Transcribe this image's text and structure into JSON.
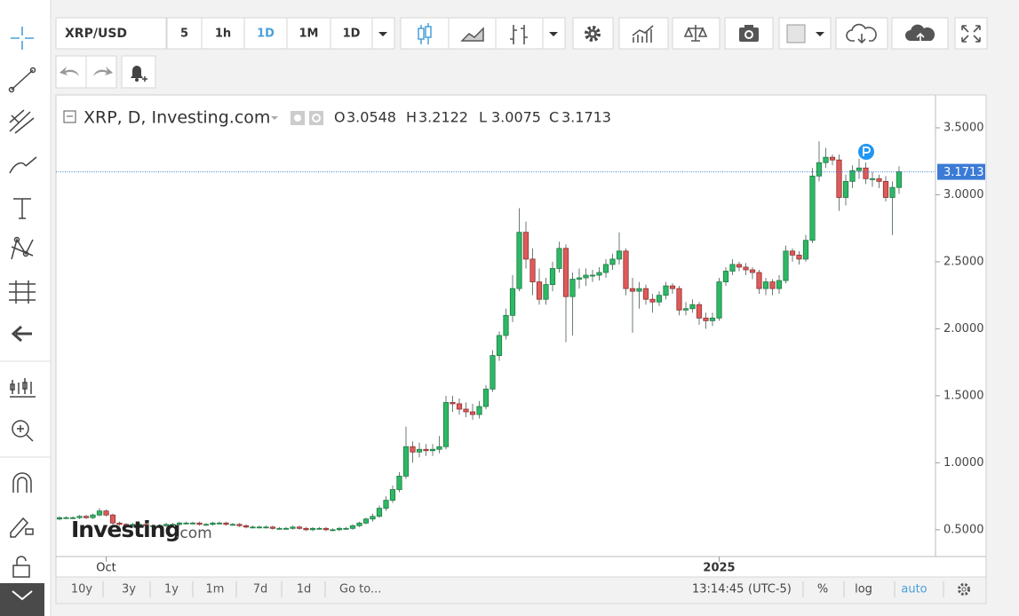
{
  "toolbar": {
    "symbol": "XRP/USD",
    "intervals": [
      "5",
      "1h",
      "1D",
      "1M",
      "1D"
    ]
  },
  "chart_data": {
    "type": "candlestick",
    "title": "XRP, D, Investing.com",
    "ohlc_labels": [
      "O",
      "H",
      "L",
      "C"
    ],
    "categories": [
      null,
      null,
      null,
      null,
      null,
      null,
      null,
      "Oct",
      null,
      null,
      null,
      null,
      null,
      null,
      null,
      null,
      null,
      null,
      null,
      null,
      null,
      null,
      null,
      null,
      null,
      null,
      null,
      null,
      null,
      null,
      null,
      null,
      null,
      null,
      null,
      null,
      null,
      null,
      null,
      null,
      null,
      null,
      null,
      null,
      null,
      null,
      null,
      null,
      null,
      null,
      null,
      null,
      null,
      null,
      null,
      null,
      null,
      null,
      null,
      null,
      null,
      null,
      null,
      null,
      null,
      null,
      null,
      null,
      null,
      null,
      null,
      null,
      null,
      null,
      null,
      null,
      null,
      null,
      null,
      null,
      null,
      null,
      null,
      null,
      null,
      null,
      null,
      null,
      null,
      null,
      null,
      null,
      null,
      null,
      null,
      null,
      null,
      null,
      null,
      "2025",
      null,
      null,
      null,
      null,
      null,
      null,
      null,
      null,
      null,
      null,
      null,
      null,
      null,
      null,
      null,
      null,
      null,
      null,
      null,
      null,
      null,
      null,
      null,
      null,
      null,
      null,
      null
    ],
    "open": [
      0.58,
      0.59,
      0.59,
      0.59,
      0.6,
      0.59,
      0.61,
      0.64,
      0.61,
      0.55,
      0.54,
      0.53,
      0.54,
      0.54,
      0.53,
      0.53,
      0.53,
      0.54,
      0.54,
      0.55,
      0.55,
      0.55,
      0.54,
      0.54,
      0.55,
      0.55,
      0.54,
      0.54,
      0.53,
      0.52,
      0.52,
      0.52,
      0.52,
      0.51,
      0.51,
      0.51,
      0.52,
      0.51,
      0.5,
      0.51,
      0.51,
      0.5,
      0.5,
      0.51,
      0.51,
      0.53,
      0.55,
      0.58,
      0.6,
      0.66,
      0.72,
      0.8,
      0.9,
      1.12,
      1.08,
      1.1,
      1.09,
      1.1,
      1.12,
      1.45,
      1.44,
      1.4,
      1.38,
      1.36,
      1.42,
      1.55,
      1.8,
      1.95,
      2.1,
      2.3,
      2.72,
      2.52,
      2.35,
      2.22,
      2.33,
      2.45,
      2.6,
      2.24,
      2.37,
      2.38,
      2.4,
      2.4,
      2.42,
      2.48,
      2.52,
      2.58,
      2.3,
      2.28,
      2.3,
      2.22,
      2.2,
      2.25,
      2.32,
      2.3,
      2.14,
      2.15,
      2.18,
      2.08,
      2.06,
      2.08,
      2.35,
      2.43,
      2.48,
      2.46,
      2.44,
      2.42,
      2.3,
      2.35,
      2.3,
      2.36,
      2.58,
      2.55,
      2.52,
      2.66,
      3.14,
      3.24,
      3.28,
      3.26,
      2.98,
      3.1,
      3.18,
      3.2,
      3.12,
      3.12,
      3.1,
      2.98,
      3.0548
    ],
    "high": [
      0.6,
      0.6,
      0.6,
      0.61,
      0.61,
      0.62,
      0.66,
      0.65,
      0.62,
      0.56,
      0.55,
      0.55,
      0.55,
      0.55,
      0.54,
      0.54,
      0.55,
      0.55,
      0.56,
      0.56,
      0.56,
      0.56,
      0.55,
      0.56,
      0.56,
      0.56,
      0.55,
      0.55,
      0.54,
      0.53,
      0.53,
      0.53,
      0.53,
      0.52,
      0.52,
      0.53,
      0.53,
      0.52,
      0.52,
      0.52,
      0.52,
      0.51,
      0.52,
      0.52,
      0.54,
      0.56,
      0.59,
      0.62,
      0.68,
      0.75,
      0.83,
      0.93,
      1.27,
      1.16,
      1.15,
      1.14,
      1.14,
      1.2,
      1.5,
      1.5,
      1.48,
      1.45,
      1.44,
      1.46,
      1.58,
      1.84,
      1.98,
      2.15,
      2.4,
      2.9,
      2.8,
      2.6,
      2.45,
      2.38,
      2.5,
      2.65,
      2.63,
      2.42,
      2.45,
      2.45,
      2.44,
      2.46,
      2.52,
      2.56,
      2.72,
      2.6,
      2.38,
      2.35,
      2.33,
      2.26,
      2.28,
      2.35,
      2.34,
      2.32,
      2.2,
      2.22,
      2.2,
      2.12,
      2.12,
      2.38,
      2.46,
      2.52,
      2.5,
      2.49,
      2.46,
      2.44,
      2.38,
      2.37,
      2.4,
      2.62,
      2.6,
      2.58,
      2.7,
      3.2,
      3.4,
      3.35,
      3.3,
      3.3,
      3.15,
      3.22,
      3.27,
      3.24,
      3.17,
      3.15,
      3.14,
      3.1,
      3.2122
    ],
    "low": [
      0.57,
      0.58,
      0.58,
      0.58,
      0.58,
      0.58,
      0.6,
      0.6,
      0.53,
      0.53,
      0.52,
      0.52,
      0.53,
      0.52,
      0.52,
      0.52,
      0.52,
      0.53,
      0.53,
      0.54,
      0.54,
      0.53,
      0.53,
      0.53,
      0.54,
      0.53,
      0.53,
      0.52,
      0.51,
      0.51,
      0.51,
      0.51,
      0.5,
      0.5,
      0.5,
      0.5,
      0.5,
      0.49,
      0.49,
      0.5,
      0.49,
      0.49,
      0.49,
      0.5,
      0.5,
      0.52,
      0.54,
      0.56,
      0.59,
      0.64,
      0.7,
      0.78,
      0.88,
      1.0,
      1.04,
      1.05,
      1.05,
      1.07,
      1.1,
      1.38,
      1.36,
      1.34,
      1.32,
      1.33,
      1.4,
      1.53,
      1.76,
      1.92,
      2.05,
      2.28,
      2.45,
      2.25,
      2.18,
      2.18,
      2.28,
      2.42,
      1.9,
      1.95,
      2.3,
      2.32,
      2.35,
      2.36,
      2.38,
      2.44,
      2.48,
      2.25,
      1.97,
      2.15,
      2.18,
      2.12,
      2.17,
      2.22,
      2.26,
      2.1,
      2.1,
      2.12,
      2.03,
      2.0,
      2.02,
      2.06,
      2.32,
      2.4,
      2.43,
      2.4,
      2.37,
      2.26,
      2.25,
      2.25,
      2.26,
      2.34,
      2.5,
      2.48,
      2.5,
      2.64,
      3.1,
      3.2,
      3.22,
      2.88,
      2.92,
      3.05,
      3.12,
      3.08,
      3.06,
      3.05,
      2.95,
      2.7,
      3.0075
    ],
    "close": [
      0.59,
      0.59,
      0.59,
      0.6,
      0.59,
      0.61,
      0.64,
      0.61,
      0.55,
      0.54,
      0.53,
      0.54,
      0.54,
      0.53,
      0.53,
      0.53,
      0.54,
      0.54,
      0.55,
      0.55,
      0.55,
      0.54,
      0.54,
      0.55,
      0.55,
      0.54,
      0.54,
      0.53,
      0.52,
      0.52,
      0.52,
      0.52,
      0.51,
      0.51,
      0.51,
      0.52,
      0.51,
      0.5,
      0.51,
      0.51,
      0.5,
      0.5,
      0.51,
      0.51,
      0.53,
      0.55,
      0.58,
      0.6,
      0.66,
      0.72,
      0.8,
      0.9,
      1.12,
      1.08,
      1.1,
      1.09,
      1.1,
      1.12,
      1.45,
      1.44,
      1.4,
      1.38,
      1.36,
      1.42,
      1.55,
      1.8,
      1.95,
      2.1,
      2.3,
      2.72,
      2.52,
      2.35,
      2.22,
      2.33,
      2.45,
      2.6,
      2.24,
      2.37,
      2.38,
      2.4,
      2.4,
      2.42,
      2.48,
      2.52,
      2.58,
      2.3,
      2.28,
      2.3,
      2.22,
      2.2,
      2.25,
      2.32,
      2.3,
      2.14,
      2.15,
      2.18,
      2.08,
      2.06,
      2.08,
      2.35,
      2.43,
      2.48,
      2.46,
      2.44,
      2.42,
      2.3,
      2.35,
      2.3,
      2.36,
      2.58,
      2.55,
      2.52,
      2.66,
      3.14,
      3.24,
      3.28,
      3.26,
      2.98,
      3.1,
      3.18,
      3.2,
      3.12,
      3.12,
      3.1,
      2.98,
      3.0548,
      3.1713
    ],
    "up_color": "#2eb865",
    "down_color": "#e05a5a",
    "ylim": [
      0.3,
      3.745
    ],
    "yticks": [
      {
        "value": 0.5,
        "label": "0.5000"
      },
      {
        "value": 1,
        "label": "1.0000"
      },
      {
        "value": 1.5,
        "label": "1.5000"
      },
      {
        "value": 2,
        "label": "2.0000"
      },
      {
        "value": 2.5,
        "label": "2.5000"
      },
      {
        "value": 3,
        "label": "3.0000"
      },
      {
        "value": 3.5,
        "label": "3.5000"
      }
    ],
    "last_price_line": true,
    "watermark": [
      "Investing",
      ".com"
    ]
  },
  "bottom_bar": {
    "ranges": [
      "10y",
      "3y",
      "1y",
      "1m",
      "7d",
      "1d"
    ],
    "goto": "Go to...",
    "time": "13:14:45",
    "timezone": "(UTC-5)",
    "options": [
      "%",
      "log",
      "auto"
    ]
  }
}
